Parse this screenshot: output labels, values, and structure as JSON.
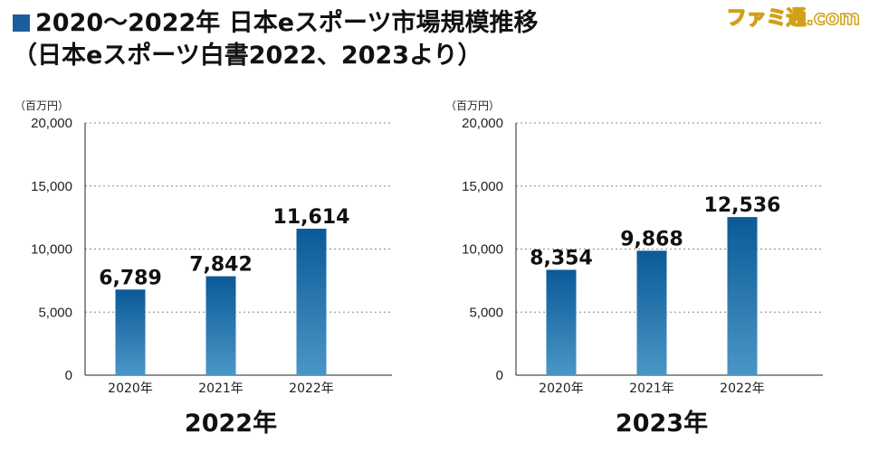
{
  "title": {
    "line1": "2020〜2022年 日本eスポーツ市場規模推移",
    "line2": "（日本eスポーツ白書2022、2023より）"
  },
  "watermark": "ファミ通.com",
  "colors": {
    "square": "#1a5ea0",
    "bar_top": "#0b5a98",
    "bar_bottom": "#4a96c6"
  },
  "chart_data": [
    {
      "type": "bar",
      "title": "2022年",
      "ylabel": "（百万円）",
      "categories": [
        "2020年",
        "2021年",
        "2022年"
      ],
      "values": [
        6789,
        7842,
        11614
      ],
      "data_labels": [
        "6,789",
        "7,842",
        "11,614"
      ],
      "yticks": [
        0,
        5000,
        10000,
        15000,
        20000
      ],
      "ytick_labels": [
        "0",
        "5,000",
        "10,000",
        "15,000",
        "20,000"
      ],
      "ylim": [
        0,
        20000
      ],
      "grid": true
    },
    {
      "type": "bar",
      "title": "2023年",
      "ylabel": "（百万円）",
      "categories": [
        "2020年",
        "2021年",
        "2022年"
      ],
      "values": [
        8354,
        9868,
        12536
      ],
      "data_labels": [
        "8,354",
        "9,868",
        "12,536"
      ],
      "yticks": [
        0,
        5000,
        10000,
        15000,
        20000
      ],
      "ytick_labels": [
        "0",
        "5,000",
        "10,000",
        "15,000",
        "20,000"
      ],
      "ylim": [
        0,
        20000
      ],
      "grid": true
    }
  ]
}
